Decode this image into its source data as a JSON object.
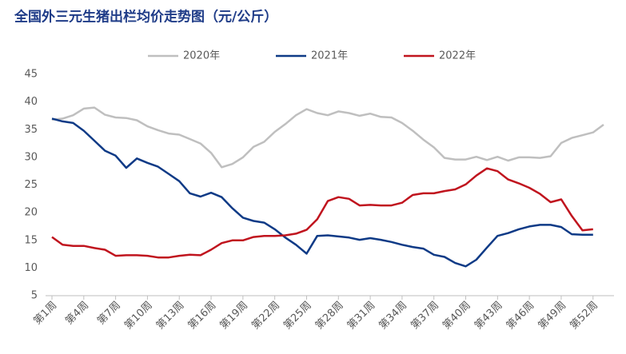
{
  "chart_data": {
    "type": "line",
    "title": "全国外三元生猪出栏均价走势图（元/公斤）",
    "categories": [
      "第1周",
      null,
      null,
      "第4周",
      null,
      null,
      "第7周",
      null,
      null,
      "第10周",
      null,
      null,
      "第13周",
      null,
      null,
      "第16周",
      null,
      null,
      "第19周",
      null,
      null,
      "第22周",
      null,
      null,
      "第25周",
      null,
      null,
      "第28周",
      null,
      null,
      "第31周",
      null,
      null,
      "第34周",
      null,
      null,
      "第37周",
      null,
      null,
      "第40周",
      null,
      null,
      "第43周",
      null,
      null,
      "第46周",
      null,
      null,
      "第49周",
      null,
      null,
      "第52周",
      null
    ],
    "series": [
      {
        "name": "2020年",
        "color": "#bfbfbf",
        "values": [
          36.8,
          37.0,
          37.6,
          38.8,
          39.0,
          37.7,
          37.2,
          37.1,
          36.7,
          35.6,
          34.9,
          34.3,
          34.1,
          33.3,
          32.5,
          30.8,
          28.2,
          28.8,
          30.0,
          31.9,
          32.8,
          34.6,
          36.0,
          37.6,
          38.7,
          38.0,
          37.6,
          38.3,
          38.0,
          37.5,
          37.9,
          37.3,
          37.2,
          36.2,
          34.8,
          33.2,
          31.8,
          29.9,
          29.6,
          29.6,
          30.1,
          29.5,
          30.1,
          29.4,
          30.0,
          30.0,
          29.9,
          30.2,
          32.6,
          33.5,
          34.0,
          34.5,
          35.9
        ]
      },
      {
        "name": "2021年",
        "color": "#0e3a86",
        "values": [
          37.0,
          36.5,
          36.2,
          34.8,
          33.0,
          31.2,
          30.3,
          28.1,
          29.8,
          29.0,
          28.3,
          27.0,
          25.7,
          23.5,
          22.9,
          23.6,
          22.8,
          20.8,
          19.1,
          18.5,
          18.2,
          17.0,
          15.5,
          14.2,
          12.6,
          15.8,
          15.9,
          15.7,
          15.5,
          15.1,
          15.4,
          15.1,
          14.7,
          14.2,
          13.8,
          13.5,
          12.4,
          12.0,
          10.9,
          10.3,
          11.5,
          13.7,
          15.8,
          16.3,
          17.0,
          17.5,
          17.8,
          17.8,
          17.4,
          16.1,
          16.0,
          16.0,
          null
        ]
      },
      {
        "name": "2022年",
        "color": "#c0141e",
        "values": [
          15.6,
          14.2,
          14.0,
          14.0,
          13.6,
          13.3,
          12.2,
          12.3,
          12.3,
          12.2,
          11.9,
          11.9,
          12.2,
          12.4,
          12.3,
          13.3,
          14.5,
          15.0,
          15.0,
          15.6,
          15.8,
          15.8,
          15.9,
          16.2,
          16.9,
          18.8,
          22.1,
          22.8,
          22.5,
          21.3,
          21.4,
          21.3,
          21.3,
          21.8,
          23.2,
          23.5,
          23.5,
          23.9,
          24.2,
          25.1,
          26.7,
          28.0,
          27.5,
          26.0,
          25.3,
          24.5,
          23.4,
          21.9,
          22.4,
          19.4,
          16.8,
          17.0,
          null
        ]
      }
    ],
    "ylim": [
      5,
      45
    ],
    "yticks": [
      5,
      10,
      15,
      20,
      25,
      30,
      35,
      40,
      45
    ]
  }
}
